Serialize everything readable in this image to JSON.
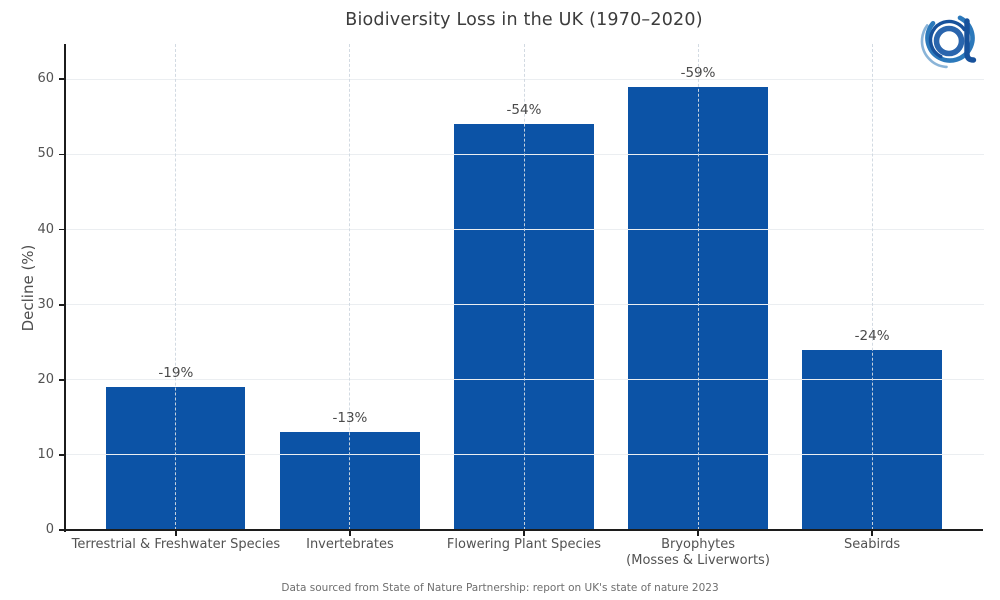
{
  "chart_data": {
    "type": "bar",
    "title": "Biodiversity Loss in the UK (1970–2020)",
    "ylabel": "Decline (%)",
    "xlabel": "",
    "categories": [
      "Terrestrial & Freshwater Species",
      "Invertebrates",
      "Flowering Plant Species",
      "Bryophytes\n(Mosses & Liverworts)",
      "Seabirds"
    ],
    "values": [
      19,
      13,
      54,
      59,
      24
    ],
    "bar_labels": [
      "-19%",
      "-13%",
      "-54%",
      "-59%",
      "-24%"
    ],
    "yticks": [
      0,
      10,
      20,
      30,
      40,
      50,
      60
    ],
    "ylim": [
      0,
      64.7
    ],
    "bar_color": "#0c53a6",
    "grid": true,
    "footer": "Data sourced from State of Nature Partnership: report on UK's state of nature 2023"
  },
  "logo": {
    "colors": {
      "primary": "#2c79bb",
      "dark": "#17519b",
      "mid": "#2a65ad",
      "light": "#8ab4d8"
    }
  }
}
